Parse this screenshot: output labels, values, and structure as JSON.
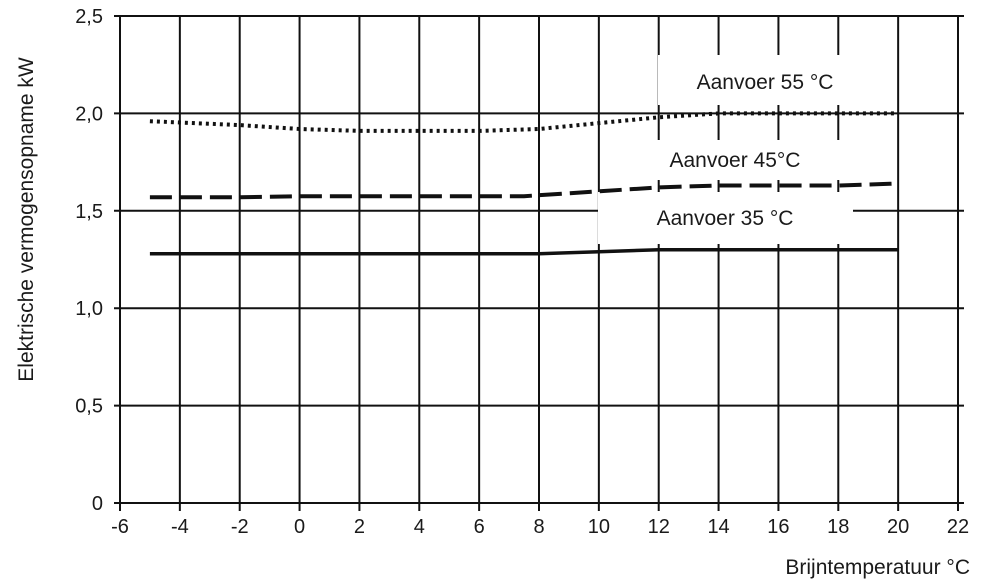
{
  "chart_data": {
    "type": "line",
    "xlabel": "Brijntemperatuur  °C",
    "ylabel": "Elektrische vermogensopname kW",
    "xlim": [
      -6,
      22
    ],
    "ylim": [
      0,
      2.5
    ],
    "x_ticks": [
      -6,
      -4,
      -2,
      0,
      2,
      4,
      6,
      8,
      10,
      12,
      14,
      16,
      18,
      20,
      22
    ],
    "x_tick_labels": [
      "-6",
      "-4",
      "-2",
      "0",
      "2",
      "4",
      "6",
      "8",
      "10",
      "12",
      "14",
      "16",
      "18",
      "20",
      "22"
    ],
    "y_ticks": [
      0,
      0.5,
      1.0,
      1.5,
      2.0,
      2.5
    ],
    "y_tick_labels": [
      "0",
      "0,5",
      "1,0",
      "1,5",
      "2,0",
      "2,5"
    ],
    "grid": true,
    "series": [
      {
        "name": "Aanvoer 55 °C",
        "style": "dotted",
        "x": [
          -5,
          -2,
          0,
          2,
          4,
          6,
          8,
          10,
          12,
          14,
          16,
          18,
          20
        ],
        "values": [
          1.96,
          1.94,
          1.92,
          1.91,
          1.91,
          1.91,
          1.92,
          1.95,
          1.98,
          2.0,
          2.0,
          2.0,
          2.0
        ]
      },
      {
        "name": "Aanvoer 45°C",
        "style": "dashed",
        "x": [
          -5,
          -2,
          0,
          2,
          4,
          6,
          7.5,
          10,
          12,
          14,
          16,
          18,
          20
        ],
        "values": [
          1.57,
          1.57,
          1.575,
          1.575,
          1.575,
          1.575,
          1.575,
          1.6,
          1.62,
          1.63,
          1.63,
          1.63,
          1.64
        ]
      },
      {
        "name": "Aanvoer 35 °C",
        "style": "solid",
        "x": [
          -5,
          -2,
          0,
          2,
          4,
          6,
          8,
          10,
          12,
          14,
          16,
          18,
          20
        ],
        "values": [
          1.28,
          1.28,
          1.28,
          1.28,
          1.28,
          1.28,
          1.28,
          1.29,
          1.3,
          1.3,
          1.3,
          1.3,
          1.3
        ]
      }
    ]
  }
}
